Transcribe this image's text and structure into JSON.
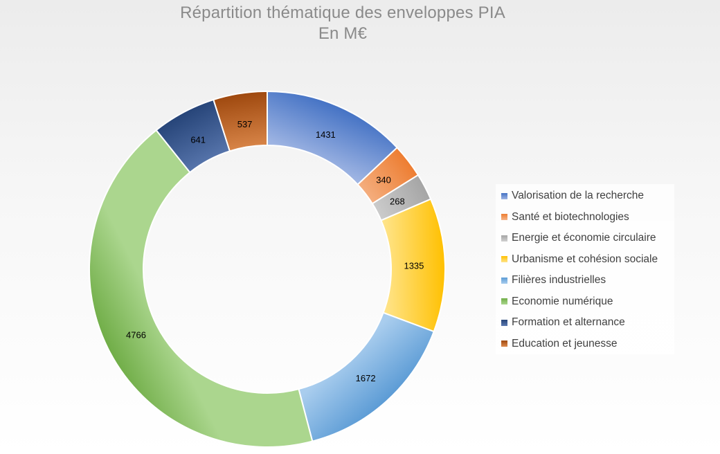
{
  "chart_data": {
    "type": "pie",
    "variant": "donut",
    "title": "Répartition thématique des enveloppes PIA",
    "subtitle": "En M€",
    "categories": [
      "Valorisation de la recherche",
      "Santé et biotechnologies",
      "Energie et économie circulaire",
      "Urbanisme et cohésion sociale",
      "Filières industrielles",
      "Economie numérique",
      "Formation et alternance",
      "Education et jeunesse"
    ],
    "values": [
      1431,
      340,
      268,
      1335,
      1672,
      4766,
      641,
      537
    ],
    "colors": [
      "#4472C4",
      "#ED7D31",
      "#A5A5A5",
      "#FFC000",
      "#5B9BD5",
      "#70AD47",
      "#264478",
      "#9E480E"
    ],
    "gradient_light_colors": [
      "#9FB5E3",
      "#F5B488",
      "#D0D0D0",
      "#FFE48A",
      "#A9CDEE",
      "#ABD68E",
      "#5B79B0",
      "#DE8B4E"
    ],
    "data_labels": [
      "1431",
      "340",
      "268",
      "1335",
      "1672",
      "4766",
      "641",
      "537"
    ],
    "legend_position": "right",
    "grid": false
  }
}
